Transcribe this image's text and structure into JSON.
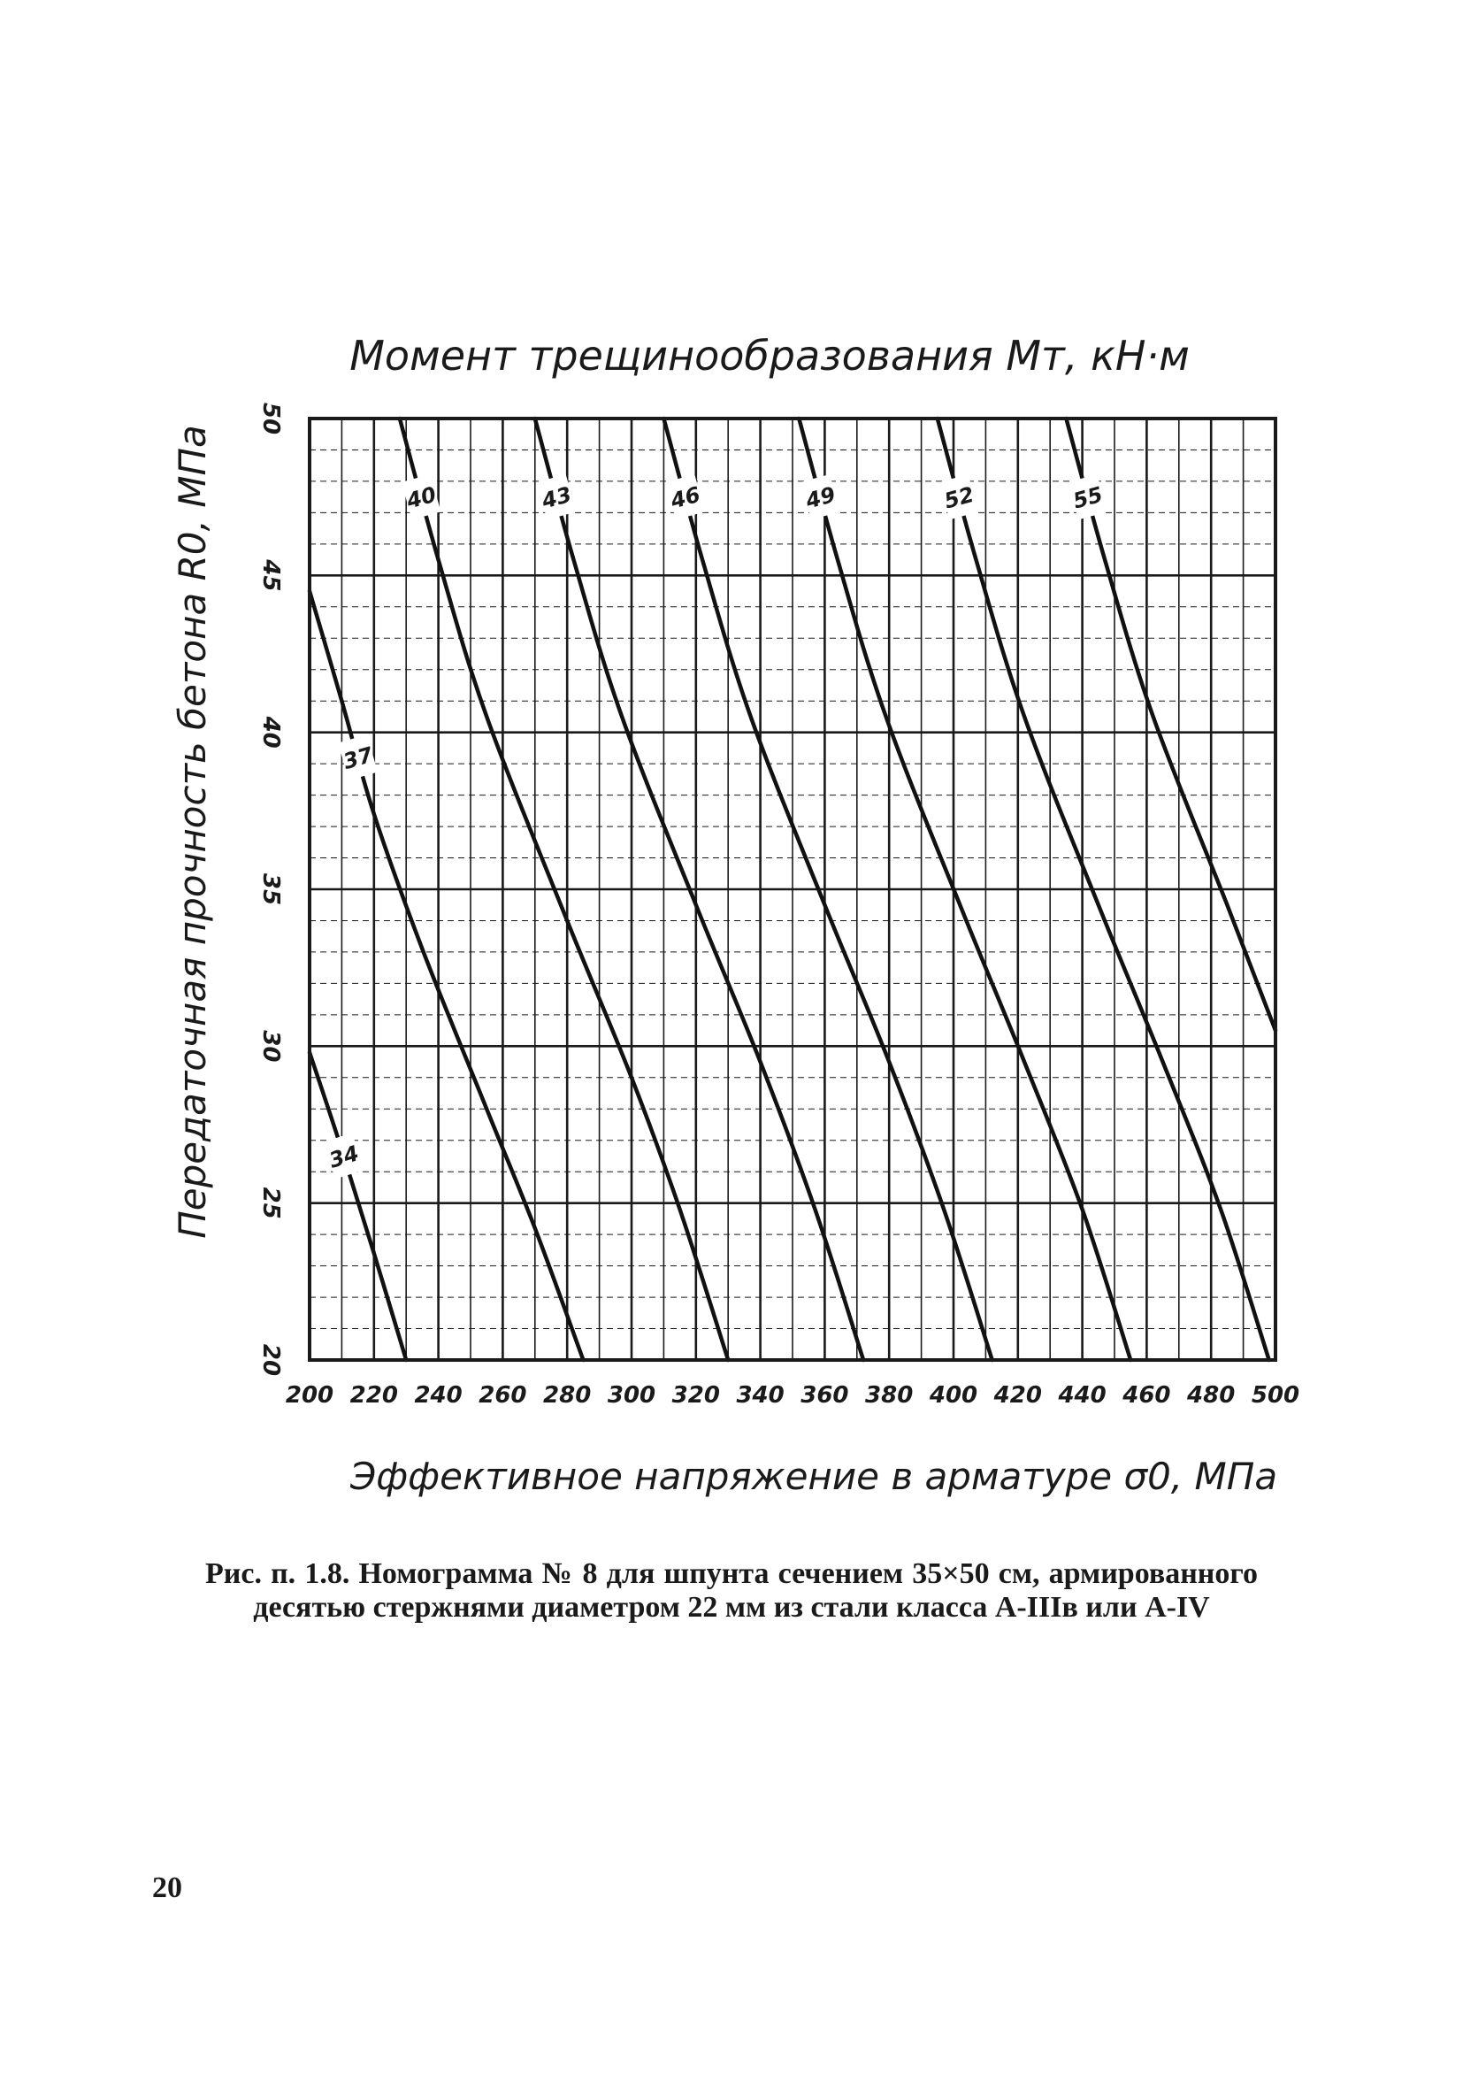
{
  "chart_data": {
    "type": "line",
    "title": "Момент трещинообразования Mт, кН·м",
    "xlabel": "Эффективное напряжение в арматуре σ0, МПа",
    "ylabel": "Передаточная прочность бетона R0, МПа",
    "xlim": [
      200,
      500
    ],
    "ylim": [
      20,
      50
    ],
    "x_ticks": [
      "200",
      "220",
      "240",
      "260",
      "280",
      "300",
      "320",
      "340",
      "360",
      "380",
      "400",
      "420",
      "440",
      "460",
      "480",
      "500"
    ],
    "y_ticks": [
      "50",
      "45",
      "40",
      "35",
      "30",
      "25",
      "20"
    ],
    "grid": true,
    "series": [
      {
        "name": "34",
        "points": [
          [
            200,
            29.8
          ],
          [
            210,
            26.7
          ],
          [
            220,
            23.4
          ],
          [
            230,
            20.0
          ]
        ]
      },
      {
        "name": "37",
        "points": [
          [
            200,
            44.5
          ],
          [
            210,
            41.0
          ],
          [
            220,
            37.4
          ],
          [
            235,
            33.1
          ],
          [
            255,
            28.0
          ],
          [
            270,
            24.2
          ],
          [
            285,
            20.0
          ]
        ]
      },
      {
        "name": "40",
        "points": [
          [
            228,
            50.0
          ],
          [
            240,
            45.5
          ],
          [
            255,
            40.5
          ],
          [
            280,
            34.0
          ],
          [
            300,
            29.0
          ],
          [
            315,
            24.8
          ],
          [
            330,
            20.0
          ]
        ]
      },
      {
        "name": "43",
        "points": [
          [
            270,
            50.0
          ],
          [
            282,
            45.5
          ],
          [
            297,
            40.5
          ],
          [
            320,
            34.5
          ],
          [
            340,
            29.5
          ],
          [
            357,
            24.8
          ],
          [
            372,
            20.0
          ]
        ]
      },
      {
        "name": "46",
        "points": [
          [
            310,
            50.0
          ],
          [
            322,
            45.5
          ],
          [
            337,
            40.5
          ],
          [
            360,
            34.5
          ],
          [
            380,
            29.5
          ],
          [
            397,
            24.8
          ],
          [
            412,
            20.0
          ]
        ]
      },
      {
        "name": "49",
        "points": [
          [
            352,
            50.0
          ],
          [
            364,
            45.5
          ],
          [
            379,
            40.5
          ],
          [
            402,
            34.5
          ],
          [
            422,
            29.5
          ],
          [
            440,
            24.8
          ],
          [
            455,
            20.0
          ]
        ]
      },
      {
        "name": "52",
        "points": [
          [
            395,
            50.0
          ],
          [
            407,
            45.5
          ],
          [
            422,
            40.5
          ],
          [
            445,
            34.5
          ],
          [
            465,
            29.5
          ],
          [
            483,
            24.8
          ],
          [
            498,
            20.0
          ]
        ]
      },
      {
        "name": "55",
        "points": [
          [
            435,
            50.0
          ],
          [
            447,
            45.5
          ],
          [
            462,
            40.5
          ],
          [
            485,
            34.5
          ],
          [
            500,
            30.5
          ]
        ]
      }
    ]
  },
  "caption": "Рис. п. 1.8. Номограмма № 8 для шпунта сечением 35×50 см, армированного десятью стержнями диаметром 22 мм из стали класса А-IIIв или А-IV",
  "page_number": "20"
}
